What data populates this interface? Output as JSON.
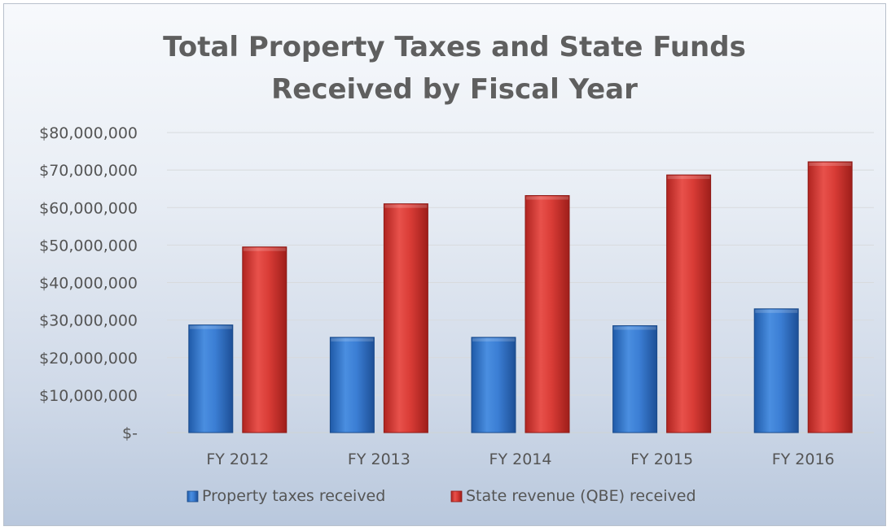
{
  "chart_data": {
    "type": "bar",
    "title_lines": [
      "Total Property Taxes and State Funds",
      "Received by Fiscal Year"
    ],
    "categories": [
      "FY 2012",
      "FY 2013",
      "FY 2014",
      "FY 2015",
      "FY 2016"
    ],
    "series": [
      {
        "name": "Property taxes received",
        "color": "#2f6fc4",
        "values": [
          28700000,
          25400000,
          25400000,
          28500000,
          33000000
        ]
      },
      {
        "name": "State revenue (QBE) received",
        "color": "#d0332e",
        "values": [
          49500000,
          61000000,
          63200000,
          68700000,
          72200000
        ]
      }
    ],
    "ylim": [
      0,
      80000000
    ],
    "yticks": [
      0,
      10000000,
      20000000,
      30000000,
      40000000,
      50000000,
      60000000,
      70000000,
      80000000
    ],
    "ytick_labels": [
      "$-",
      "$10,000,000",
      "$20,000,000",
      "$30,000,000",
      "$40,000,000",
      "$50,000,000",
      "$60,000,000",
      "$70,000,000",
      "$80,000,000"
    ],
    "xlabel": "",
    "ylabel": "",
    "grid": true,
    "legend_position": "bottom"
  }
}
